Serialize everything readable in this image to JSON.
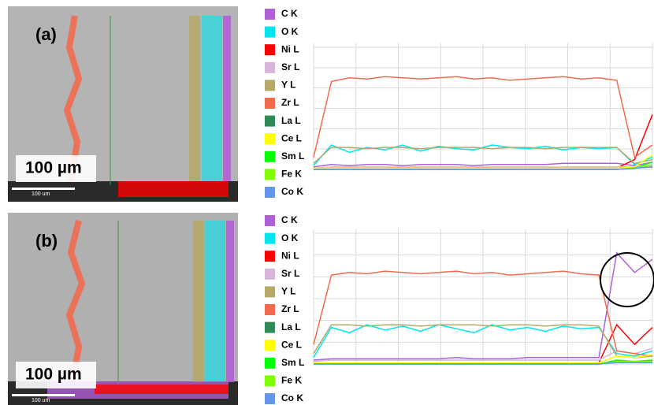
{
  "chart_data": [
    {
      "type": "line",
      "label": "(a)",
      "scale_bar": "100 µm",
      "image_scale_bar": "100 um",
      "ylim": [
        0,
        100
      ],
      "grid": true,
      "series": [
        {
          "name": "C  K",
          "color": "#b05fd6",
          "values": [
            2,
            4,
            3,
            4,
            4,
            3,
            4,
            4,
            4,
            3,
            4,
            4,
            4,
            4,
            5,
            5,
            5,
            5,
            3,
            6
          ]
        },
        {
          "name": "O  K",
          "color": "#00e5ee",
          "values": [
            3,
            20,
            14,
            18,
            16,
            20,
            15,
            19,
            17,
            16,
            20,
            18,
            17,
            19,
            16,
            18,
            17,
            18,
            4,
            10
          ]
        },
        {
          "name": "Ni L",
          "color": "#ff0000",
          "values": [
            1,
            1,
            1,
            1,
            1,
            1,
            1,
            1,
            1,
            1,
            1,
            1,
            1,
            1,
            1,
            1,
            1,
            1,
            8,
            45
          ]
        },
        {
          "name": "Sr L",
          "color": "#d8b6d8",
          "values": [
            1,
            2,
            2,
            2,
            2,
            2,
            2,
            2,
            2,
            2,
            2,
            2,
            2,
            2,
            2,
            2,
            2,
            2,
            2,
            3
          ]
        },
        {
          "name": "Y  L",
          "color": "#b5a96a",
          "values": [
            5,
            18,
            18,
            17,
            18,
            18,
            17,
            18,
            18,
            18,
            17,
            18,
            18,
            17,
            18,
            18,
            18,
            18,
            5,
            8
          ]
        },
        {
          "name": "Zr L",
          "color": "#f26b4f",
          "values": [
            10,
            72,
            75,
            74,
            76,
            75,
            74,
            75,
            76,
            74,
            75,
            73,
            74,
            75,
            76,
            74,
            75,
            73,
            10,
            20
          ]
        },
        {
          "name": "La L",
          "color": "#2e8b57",
          "values": [
            0,
            0,
            0,
            0,
            0,
            0,
            0,
            0,
            0,
            0,
            0,
            0,
            0,
            0,
            0,
            0,
            0,
            0,
            1,
            2
          ]
        },
        {
          "name": "Ce L",
          "color": "#ffff00",
          "values": [
            1,
            1,
            1,
            1,
            1,
            1,
            1,
            1,
            1,
            1,
            1,
            1,
            1,
            1,
            1,
            1,
            1,
            1,
            2,
            12
          ]
        },
        {
          "name": "Sm L",
          "color": "#00ff00",
          "values": [
            0,
            0,
            0,
            0,
            0,
            0,
            0,
            0,
            0,
            0,
            0,
            0,
            0,
            0,
            0,
            0,
            0,
            0,
            1,
            6
          ]
        },
        {
          "name": "Fe K",
          "color": "#7fff00",
          "values": [
            0,
            0,
            0,
            0,
            0,
            0,
            0,
            0,
            0,
            0,
            0,
            0,
            0,
            0,
            0,
            0,
            0,
            0,
            1,
            4
          ]
        },
        {
          "name": "Co K",
          "color": "#6495ed",
          "values": [
            0,
            0,
            0,
            0,
            0,
            0,
            0,
            0,
            0,
            0,
            0,
            0,
            0,
            0,
            0,
            0,
            0,
            0,
            1,
            2
          ]
        }
      ]
    },
    {
      "type": "line",
      "label": "(b)",
      "scale_bar": "100 µm",
      "image_scale_bar": "100 um",
      "ylim": [
        0,
        100
      ],
      "grid": true,
      "series": [
        {
          "name": "C  K",
          "color": "#b05fd6",
          "values": [
            3,
            4,
            4,
            4,
            4,
            4,
            4,
            4,
            5,
            4,
            4,
            4,
            5,
            5,
            5,
            5,
            5,
            85,
            70,
            80
          ]
        },
        {
          "name": "O  K",
          "color": "#00e5ee",
          "values": [
            5,
            28,
            24,
            30,
            26,
            29,
            25,
            30,
            27,
            24,
            30,
            26,
            28,
            25,
            29,
            27,
            28,
            8,
            6,
            10
          ]
        },
        {
          "name": "Ni L",
          "color": "#ff0000",
          "values": [
            1,
            1,
            1,
            1,
            1,
            1,
            1,
            1,
            1,
            1,
            1,
            1,
            1,
            1,
            1,
            1,
            1,
            30,
            15,
            28
          ]
        },
        {
          "name": "Sr L",
          "color": "#d8b6d8",
          "values": [
            2,
            3,
            3,
            3,
            3,
            3,
            3,
            3,
            3,
            3,
            3,
            3,
            3,
            3,
            3,
            3,
            3,
            10,
            8,
            12
          ]
        },
        {
          "name": "Y  L",
          "color": "#b5a96a",
          "values": [
            8,
            30,
            30,
            29,
            30,
            30,
            29,
            30,
            30,
            30,
            29,
            30,
            30,
            29,
            30,
            30,
            29,
            6,
            5,
            6
          ]
        },
        {
          "name": "Zr L",
          "color": "#f26b4f",
          "values": [
            15,
            68,
            70,
            69,
            71,
            70,
            69,
            70,
            71,
            69,
            70,
            68,
            69,
            70,
            71,
            69,
            68,
            10,
            8,
            6
          ]
        },
        {
          "name": "La L",
          "color": "#2e8b57",
          "values": [
            0,
            0,
            0,
            0,
            0,
            0,
            0,
            0,
            0,
            0,
            0,
            0,
            0,
            0,
            0,
            0,
            0,
            2,
            1,
            2
          ]
        },
        {
          "name": "Ce L",
          "color": "#ffff00",
          "values": [
            1,
            1,
            1,
            1,
            1,
            1,
            1,
            1,
            1,
            1,
            1,
            1,
            1,
            1,
            1,
            1,
            1,
            6,
            5,
            7
          ]
        },
        {
          "name": "Sm L",
          "color": "#00ff00",
          "values": [
            0,
            0,
            0,
            0,
            0,
            0,
            0,
            0,
            0,
            0,
            0,
            0,
            0,
            0,
            0,
            0,
            0,
            3,
            2,
            3
          ]
        },
        {
          "name": "Fe K",
          "color": "#7fff00",
          "values": [
            0,
            0,
            0,
            0,
            0,
            0,
            0,
            0,
            0,
            0,
            0,
            0,
            0,
            0,
            0,
            0,
            0,
            2,
            2,
            2
          ]
        },
        {
          "name": "Co K",
          "color": "#6495ed",
          "values": [
            0,
            0,
            0,
            0,
            0,
            0,
            0,
            0,
            0,
            0,
            0,
            0,
            0,
            0,
            0,
            0,
            0,
            1,
            1,
            1
          ]
        }
      ]
    }
  ]
}
